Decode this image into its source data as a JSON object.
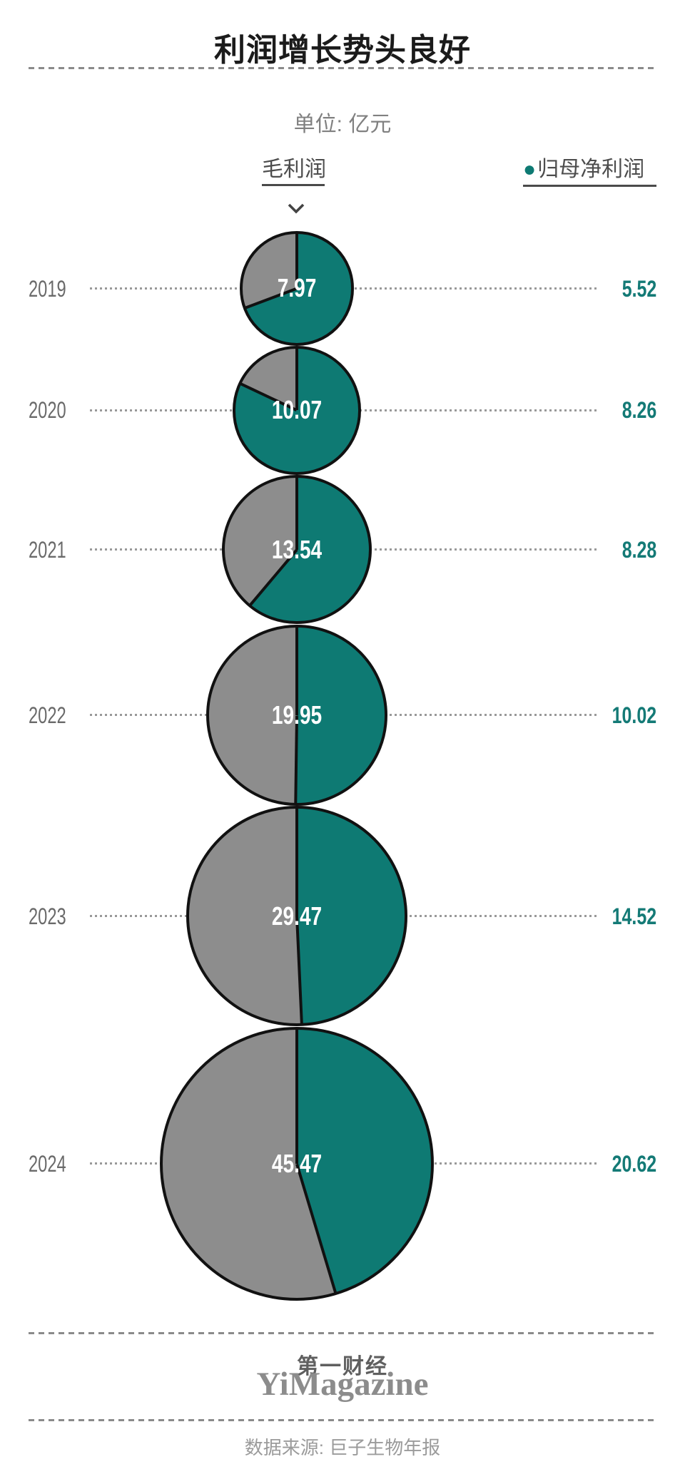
{
  "page": {
    "title": "利润增长势头良好",
    "unit_label": "单位: 亿元"
  },
  "legend": {
    "gross_label": "毛利润",
    "net_bullet": "●",
    "net_label": "归母净利润"
  },
  "chart_data": {
    "type": "pie",
    "title": "利润增长势头良好",
    "unit": "亿元",
    "encoding": {
      "circle_area": "毛利润 (value shown in white inside each circle)",
      "teal_slice_fraction": "归母净利润 / 毛利润",
      "right_value": "归母净利润 (teal number at right of each row)",
      "slice_start": "12 o'clock, clockwise"
    },
    "categories": [
      "2019",
      "2020",
      "2021",
      "2022",
      "2023",
      "2024"
    ],
    "series": [
      {
        "name": "毛利润",
        "values": [
          7.97,
          10.07,
          13.54,
          19.95,
          29.47,
          45.47
        ]
      },
      {
        "name": "归母净利润",
        "values": [
          5.52,
          8.26,
          8.28,
          10.02,
          14.52,
          20.62
        ]
      }
    ],
    "legend_position": "top",
    "grid": false
  },
  "footer": {
    "brand_cn": "第一财经",
    "brand_en": "YiMagazine",
    "source": "数据来源: 巨子生物年报"
  },
  "colors": {
    "teal": "#0e7a73",
    "gray": "#8d8d8d",
    "outline": "#111111",
    "dotted_guide": "#999999",
    "dashed_divider": "#8a8a8a",
    "net_value_text": "#147a76"
  }
}
